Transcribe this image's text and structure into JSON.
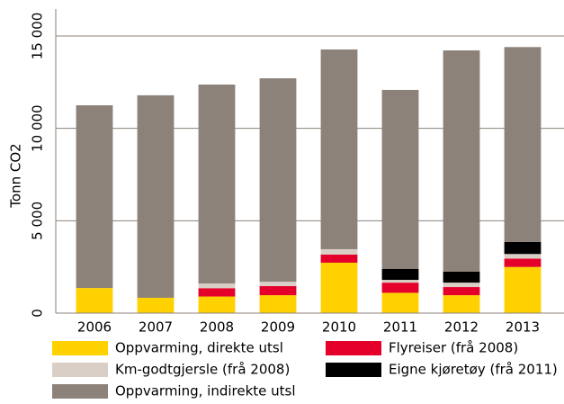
{
  "chart_data": {
    "type": "stacked_bar",
    "y_label": "Tonn CO2",
    "categories": [
      "2006",
      "2007",
      "2008",
      "2009",
      "2010",
      "2011",
      "2012",
      "2013"
    ],
    "series": [
      {
        "name": "Oppvarming, direkte utsl",
        "color": "#ffd100",
        "values": [
          1360,
          830,
          900,
          970,
          2730,
          1100,
          970,
          2500
        ]
      },
      {
        "name": "Flyreiser (frå 2008)",
        "color": "#e4002b",
        "values": [
          0,
          0,
          450,
          490,
          440,
          550,
          440,
          450
        ]
      },
      {
        "name": "Km-godtgjersle (frå 2008)",
        "color": "#d9cfc7",
        "values": [
          0,
          0,
          250,
          240,
          290,
          150,
          240,
          250
        ]
      },
      {
        "name": "Eigne kjøretøy (frå 2011)",
        "color": "#000000",
        "values": [
          0,
          0,
          0,
          0,
          0,
          600,
          590,
          650
        ]
      },
      {
        "name": "Oppvarming, indirekte utsl",
        "color": "#8c8279",
        "values": [
          9890,
          10960,
          10770,
          11010,
          10810,
          9680,
          11980,
          10550
        ]
      }
    ],
    "ylim": [
      0,
      15000
    ],
    "yticks": [
      0,
      {
        "value": 5000,
        "label": "5 000"
      },
      {
        "value": 10000,
        "label": "10 000"
      },
      {
        "value": 15000,
        "label": "15 000"
      }
    ],
    "grid": true
  }
}
